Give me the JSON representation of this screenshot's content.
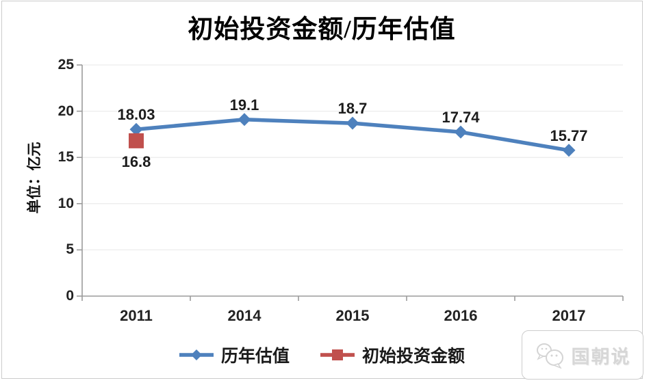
{
  "title": "初始投资金额/历年估值",
  "y_axis": {
    "unit_label": "单位：亿元",
    "ticks": [
      "25",
      "20",
      "15",
      "10",
      "5",
      "0"
    ]
  },
  "x_axis": {
    "categories": [
      "2011",
      "2014",
      "2015",
      "2016",
      "2017"
    ]
  },
  "legend": {
    "items": [
      {
        "label": "历年估值",
        "marker": "diamond",
        "color": "#4E81BD"
      },
      {
        "label": "初始投资金额",
        "marker": "square",
        "color": "#C0504D"
      }
    ]
  },
  "watermark": {
    "text": "国朝说"
  },
  "colors": {
    "series_blue": "#4E81BD",
    "series_red": "#C0504D",
    "gridline": "#ececec",
    "axis": "#9b9b9b",
    "frame": "#cbcbcb"
  },
  "chart_data": {
    "type": "line",
    "categories": [
      "2011",
      "2014",
      "2015",
      "2016",
      "2017"
    ],
    "series": [
      {
        "name": "历年估值",
        "marker": "diamond",
        "color": "#4E81BD",
        "values": [
          18.03,
          19.1,
          18.7,
          17.74,
          15.77
        ],
        "label_offset": "above"
      },
      {
        "name": "初始投资金额",
        "marker": "square",
        "color": "#C0504D",
        "values": [
          16.8,
          null,
          null,
          null,
          null
        ],
        "label_offset": "below"
      }
    ],
    "title": "初始投资金额/历年估值",
    "xlabel": "",
    "ylabel": "单位：亿元",
    "ylim": [
      0,
      25
    ],
    "ytick_step": 5,
    "grid": true,
    "legend_position": "bottom",
    "data_labels": true
  }
}
